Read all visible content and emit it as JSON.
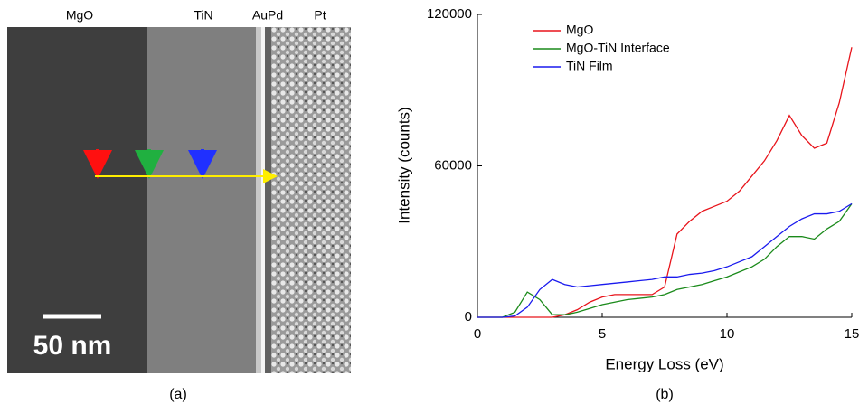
{
  "micrograph": {
    "labels": [
      "MgO",
      "TiN",
      "AuPd",
      "Pt"
    ],
    "scale_bar": "50 nm",
    "caption": "(a)"
  },
  "chart_data": {
    "type": "line",
    "caption": "(b)",
    "x_label": "Energy Loss (eV)",
    "y_label": "Intensity (counts)",
    "x": [
      0,
      0.5,
      1,
      1.5,
      2,
      2.5,
      3,
      3.5,
      4,
      4.5,
      5,
      5.5,
      6,
      6.5,
      7,
      7.5,
      8,
      8.5,
      9,
      9.5,
      10,
      10.5,
      11,
      11.5,
      12,
      12.5,
      13,
      13.5,
      14,
      14.5,
      15
    ],
    "series": [
      {
        "name": "MgO",
        "color": "#e8141b",
        "values": [
          0,
          0,
          0,
          0,
          0,
          0,
          0,
          1000,
          3000,
          6000,
          8000,
          9000,
          9000,
          9000,
          9000,
          12000,
          33000,
          38000,
          42000,
          44000,
          46000,
          50000,
          56000,
          62000,
          70000,
          80000,
          72000,
          67000,
          69000,
          85000,
          107000
        ]
      },
      {
        "name": "MgO-TiN Interface",
        "color": "#1a8a1a",
        "values": [
          0,
          0,
          0,
          2000,
          10000,
          7000,
          1000,
          1000,
          2000,
          3500,
          5000,
          6000,
          7000,
          7500,
          8000,
          9000,
          11000,
          12000,
          13000,
          14500,
          16000,
          18000,
          20000,
          23000,
          28000,
          32000,
          32000,
          31000,
          35000,
          38000,
          45000
        ]
      },
      {
        "name": "TiN Film",
        "color": "#1a1aee",
        "values": [
          0,
          0,
          0,
          500,
          4000,
          11000,
          15000,
          13000,
          12000,
          12500,
          13000,
          13500,
          14000,
          14500,
          15000,
          16000,
          16000,
          17000,
          17500,
          18500,
          20000,
          22000,
          24000,
          28000,
          32000,
          36000,
          39000,
          41000,
          41000,
          42000,
          45000
        ]
      }
    ],
    "xlim": [
      0,
      15
    ],
    "ylim": [
      0,
      120000
    ],
    "xticks": [
      0,
      5,
      10,
      15
    ],
    "yticks": [
      0,
      60000,
      120000
    ],
    "legend": "upper-left"
  }
}
